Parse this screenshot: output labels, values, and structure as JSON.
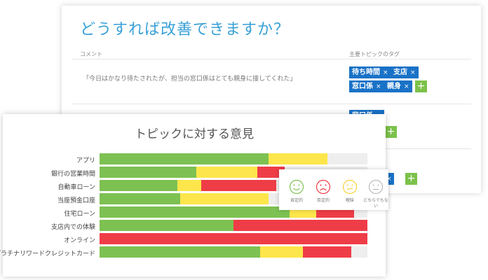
{
  "improve_panel": {
    "title": "どうすれば改善できますか？",
    "comment_header": "コメント",
    "tags_header": "主要トピックのタグ",
    "comment": "「今日はかなり待たされたが、担当の窓口係はとても親身に接してくれた」",
    "tags": [
      "待ち時間",
      "支店",
      "窓口係",
      "親身"
    ],
    "second_row_tag": "窓口係",
    "remove_symbol": "×",
    "add_symbol": "+"
  },
  "chart_data": {
    "type": "bar",
    "stacked": true,
    "orientation": "horizontal",
    "title": "トピックに対する意見",
    "categories": [
      "アプリ",
      "銀行の営業時間",
      "自動車ローン",
      "当座預金口座",
      "住宅ローン",
      "支店内での体験",
      "オンライン",
      "プラチナリワードクレジットカード"
    ],
    "xlim": [
      0,
      100
    ],
    "colors": {
      "positive": "#7dc152",
      "negative": "#ef3d47",
      "neutral": "#fde64b",
      "undecided": "#eeeeee"
    },
    "series": [
      {
        "key": "positive",
        "values": [
          63,
          36,
          29,
          30,
          71,
          50,
          0,
          60
        ]
      },
      {
        "key": "neutral",
        "values": [
          22,
          23,
          9,
          33,
          10,
          0,
          0,
          16
        ]
      },
      {
        "key": "negative",
        "values": [
          0,
          10,
          28,
          0,
          14,
          50,
          100,
          18
        ]
      },
      {
        "key": "undecided",
        "values": [
          15,
          31,
          34,
          37,
          5,
          0,
          0,
          6
        ]
      }
    ]
  },
  "legend": {
    "items": [
      {
        "key": "positive",
        "label": "肯定的",
        "color": "#7dc152"
      },
      {
        "key": "negative",
        "label": "否定的",
        "color": "#ef3d47"
      },
      {
        "key": "neutral",
        "label": "曖昧",
        "color": "#f6d23a"
      },
      {
        "key": "undecided",
        "label": "どちらでもない",
        "color": "#bbbbbb"
      }
    ]
  }
}
